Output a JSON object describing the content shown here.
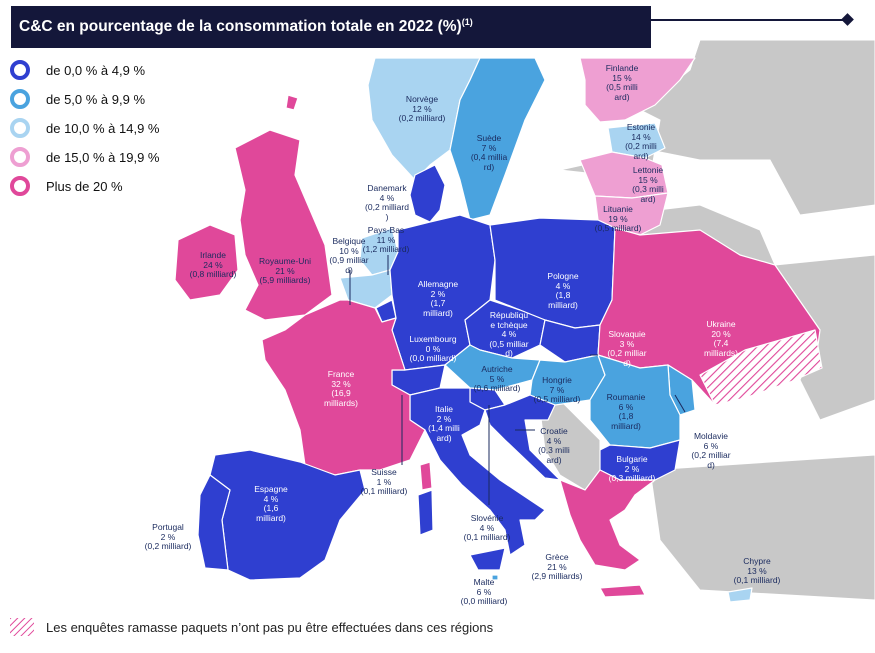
{
  "title": "C&C en pourcentage de la consommation totale en 2022 (%)",
  "title_note": "(1)",
  "colors": {
    "c0": "#2f3fd0",
    "c5": "#4aa3df",
    "c10": "#a9d4f1",
    "c15": "#ee9fd2",
    "c20": "#e0489a",
    "none": "#c8c8c8",
    "title_bg": "#14173a"
  },
  "legend": [
    {
      "label": "de 0,0 % à 4,9 %",
      "color": "#2f3fd0"
    },
    {
      "label": "de 5,0 % à 9,9 %",
      "color": "#4aa3df"
    },
    {
      "label": "de 10,0 % à 14,9 %",
      "color": "#a9d4f1"
    },
    {
      "label": "de 15,0 % à 19,9 %",
      "color": "#ee9fd2"
    },
    {
      "label": "Plus de 20 %",
      "color": "#e0489a"
    }
  ],
  "footnote": "Les enquêtes ramasse paquets n’ont pas pu être effectuées dans ces régions",
  "labels": {
    "finlande": "Finlande\n15 %\n(0,5 milli\nard)",
    "norvege": "Norvège\n12 %\n(0,2 milliard)",
    "suede": "Suède\n7 %\n(0,4 millia\nrd)",
    "estonie": "Estonie\n14 %\n(0,2 milli\nard)",
    "lettonie": "Lettonie\n15 %\n(0,3 milli\nard)",
    "lituanie": "Lituanie\n19 %\n(0,5 milliard)",
    "danemark": "Danemark\n4 %\n(0,2 milliard\n)",
    "paysbas": "Pays-Bas\n11 %\n(1,2 milliard)",
    "belgique": "Belgique\n10 %\n(0,9 milliar\nd)",
    "irlande": "Irlande\n24 %\n(0,8 milliard)",
    "royaumeuni": "Royaume-Uni\n21 %\n(5,9 milliards)",
    "allemagne": "Allemagne\n2 %\n(1,7\nmilliard)",
    "pologne": "Pologne\n4 %\n(1,8\nmilliard)",
    "tcheque": "Républiqu\ne tchèque\n4 %\n(0,5 milliar\nd)",
    "luxembourg": "Luxembourg\n0 %\n(0,0 milliard)",
    "slovaquie": "Slovaquie\n3 %\n(0,2 milliar\nd)",
    "ukraine": "Ukraine\n20 %\n(7,4\nmilliards)",
    "france": "France\n32 %\n(16,9\nmilliards)",
    "autriche": "Autriche\n5 %\n(0,6 milliard)",
    "hongrie": "Hongrie\n7 %\n(0,5 milliard)",
    "roumanie": "Roumanie\n6 %\n(1,8\nmilliard)",
    "italie": "Italie\n2 %\n(1,4 milli\nard)",
    "croatie": "Croatie\n4 %\n(0,3 milli\nard)",
    "moldavie": "Moldavie\n6 %\n(0,2 milliar\nd)",
    "suisse": "Suisse\n1 %\n(0,1 milliard)",
    "bulgarie": "Bulgarie\n2 %\n(0,3 milliard)",
    "espagne": "Espagne\n4 %\n(1,6\nmilliard)",
    "portugal": "Portugal\n2 %\n(0,2 milliard)",
    "slovenie": "Slovénie\n4 %\n(0,1 milliard)",
    "grece": "Grèce\n21 %\n(2,9 milliards)",
    "chypre": "Chypre\n13 %\n(0,1 milliard)",
    "malte": "Malte\n6 %\n(0,0 milliard)"
  }
}
